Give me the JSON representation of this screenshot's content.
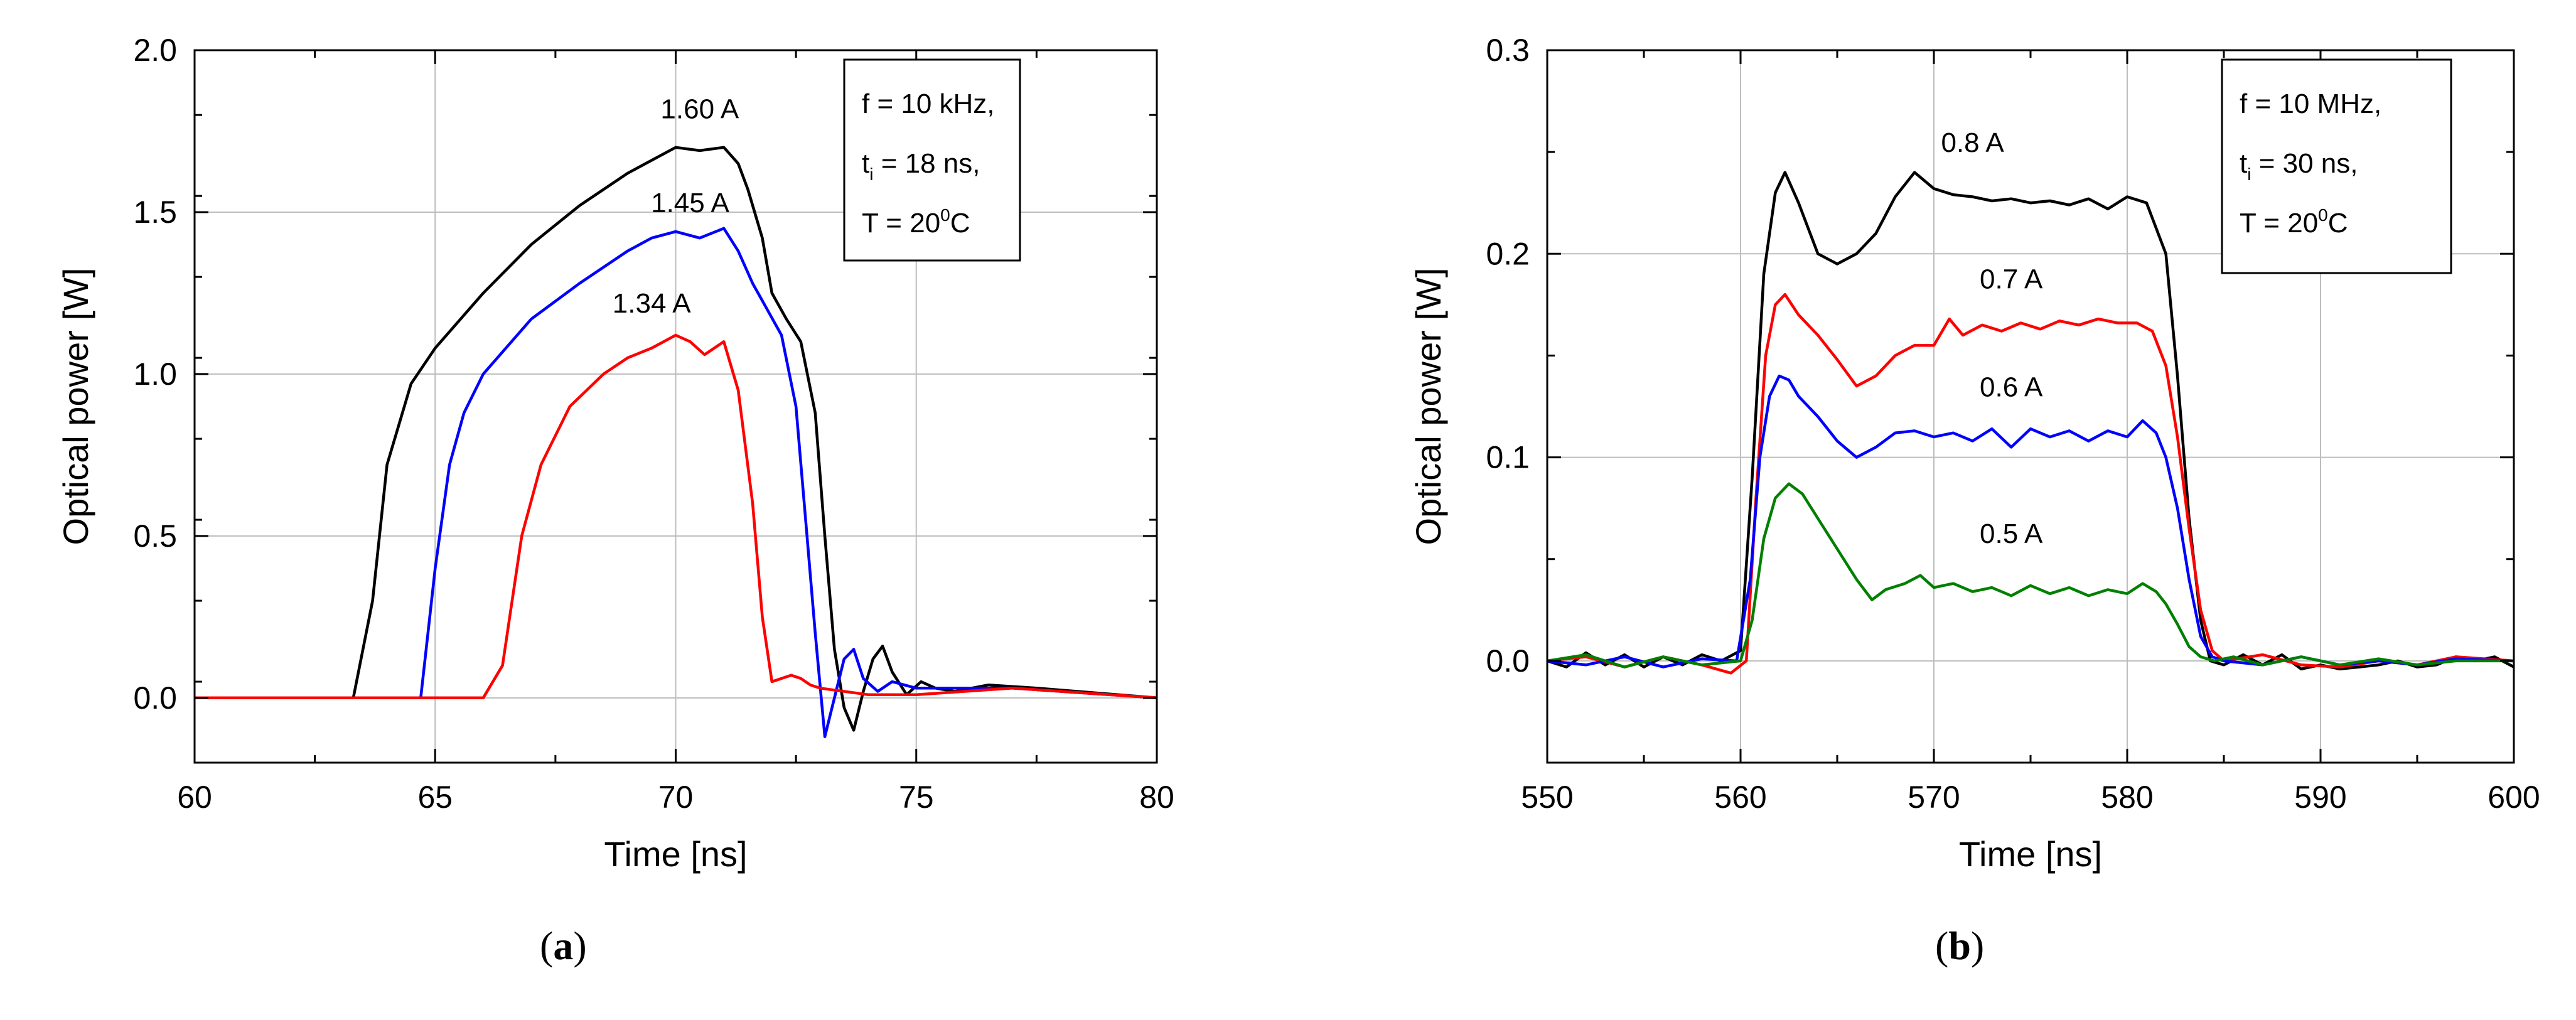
{
  "panels": [
    {
      "label": "a",
      "chart_data": {
        "type": "line",
        "xlabel": "Time [ns]",
        "ylabel": "Optical power [W]",
        "xlim": [
          60,
          80
        ],
        "ylim": [
          -0.2,
          2.0
        ],
        "xticks": [
          60,
          65,
          70,
          75,
          80
        ],
        "yticks": [
          0.0,
          0.5,
          1.0,
          1.5,
          2.0
        ],
        "ytick_labels": [
          "0.0",
          "0.5",
          "1.0",
          "1.5",
          "2.0"
        ],
        "grid": true,
        "legend": {
          "position": "top-right",
          "lines": [
            {
              "main": "f = 10 kHz,"
            },
            {
              "main": "t",
              "sub": "i",
              "rest": " = 18 ns,"
            },
            {
              "main": "T = 20",
              "sup": "0",
              "rest": "C"
            }
          ]
        },
        "series": [
          {
            "name": "1.60 A",
            "color": "#000000",
            "label_x": 70.5,
            "label_y": 1.79,
            "x": [
              60,
              62,
              63.3,
              63.7,
              64.0,
              64.5,
              65,
              66,
              67,
              68,
              69,
              69.5,
              70,
              70.5,
              71,
              71.3,
              71.5,
              71.8,
              72,
              72.3,
              72.6,
              72.9,
              73.1,
              73.3,
              73.5,
              73.7,
              73.9,
              74.1,
              74.3,
              74.5,
              74.8,
              75.1,
              75.4,
              75.8,
              76.5,
              77.5,
              80
            ],
            "y": [
              0,
              0,
              0,
              0.3,
              0.72,
              0.97,
              1.08,
              1.25,
              1.4,
              1.52,
              1.62,
              1.66,
              1.7,
              1.69,
              1.7,
              1.65,
              1.57,
              1.42,
              1.25,
              1.17,
              1.1,
              0.88,
              0.5,
              0.15,
              -0.03,
              -0.1,
              0.02,
              0.12,
              0.16,
              0.08,
              0.01,
              0.05,
              0.03,
              0.02,
              0.04,
              0.03,
              0.0
            ]
          },
          {
            "name": "1.45 A",
            "color": "#0000ff",
            "label_x": 70.3,
            "label_y": 1.5,
            "x": [
              60,
              64,
              64.7,
              65.0,
              65.3,
              65.6,
              66,
              67,
              68,
              69,
              69.5,
              70,
              70.5,
              71,
              71.3,
              71.6,
              71.9,
              72.2,
              72.5,
              72.7,
              72.9,
              73.1,
              73.3,
              73.5,
              73.7,
              73.9,
              74.2,
              74.5,
              75,
              76,
              77,
              80
            ],
            "y": [
              0,
              0,
              0,
              0.4,
              0.72,
              0.88,
              1.0,
              1.17,
              1.28,
              1.38,
              1.42,
              1.44,
              1.42,
              1.45,
              1.38,
              1.28,
              1.2,
              1.12,
              0.9,
              0.55,
              0.2,
              -0.12,
              0.0,
              0.12,
              0.15,
              0.06,
              0.02,
              0.05,
              0.03,
              0.03,
              0.03,
              0.0
            ]
          },
          {
            "name": "1.34 A",
            "color": "#ff0000",
            "label_x": 69.5,
            "label_y": 1.19,
            "x": [
              60,
              66,
              66.4,
              66.8,
              67.2,
              67.8,
              68.5,
              69,
              69.5,
              70,
              70.3,
              70.6,
              71,
              71.3,
              71.6,
              71.8,
              72.0,
              72.2,
              72.4,
              72.6,
              72.8,
              73,
              74,
              75,
              76,
              77,
              80
            ],
            "y": [
              0,
              0,
              0.1,
              0.5,
              0.72,
              0.9,
              1.0,
              1.05,
              1.08,
              1.12,
              1.1,
              1.06,
              1.1,
              0.95,
              0.6,
              0.25,
              0.05,
              0.06,
              0.07,
              0.06,
              0.04,
              0.03,
              0.01,
              0.01,
              0.02,
              0.03,
              0.0
            ]
          }
        ]
      }
    },
    {
      "label": "b",
      "chart_data": {
        "type": "line",
        "xlabel": "Time [ns]",
        "ylabel": "Optical power [W]",
        "xlim": [
          550,
          600
        ],
        "ylim": [
          -0.05,
          0.3
        ],
        "xticks": [
          550,
          560,
          570,
          580,
          590,
          600
        ],
        "yticks": [
          0.0,
          0.1,
          0.2,
          0.3
        ],
        "ytick_labels": [
          "0.0",
          "0.1",
          "0.2",
          "0.3"
        ],
        "grid": true,
        "legend": {
          "position": "top-right",
          "lines": [
            {
              "main": "f = 10 MHz,"
            },
            {
              "main": "t",
              "sub": "i",
              "rest": " = 30 ns,"
            },
            {
              "main": "T = 20",
              "sup": "0",
              "rest": "C"
            }
          ]
        },
        "series": [
          {
            "name": "0.8 A",
            "color": "#000000",
            "label_x": 572,
            "label_y": 0.25,
            "x": [
              550,
              551,
              552,
              553,
              554,
              555,
              556,
              557,
              558,
              559,
              560,
              560.6,
              561.2,
              561.8,
              562.3,
              563,
              564,
              565,
              566,
              567,
              568,
              569,
              570,
              571,
              572,
              573,
              574,
              575,
              576,
              577,
              578,
              579,
              580,
              581,
              582,
              582.6,
              583.2,
              583.8,
              584.3,
              585,
              586,
              587,
              588,
              589,
              590,
              591,
              592,
              593,
              594,
              595,
              596,
              597,
              598,
              599,
              600
            ],
            "y": [
              0.0,
              -0.003,
              0.004,
              -0.002,
              0.003,
              -0.003,
              0.002,
              -0.002,
              0.003,
              0.0,
              0.005,
              0.09,
              0.19,
              0.23,
              0.24,
              0.225,
              0.2,
              0.195,
              0.2,
              0.21,
              0.228,
              0.24,
              0.232,
              0.229,
              0.228,
              0.226,
              0.227,
              0.225,
              0.226,
              0.224,
              0.227,
              0.222,
              0.228,
              0.225,
              0.2,
              0.14,
              0.07,
              0.02,
              0.0,
              -0.002,
              0.003,
              -0.002,
              0.003,
              -0.004,
              -0.002,
              -0.004,
              -0.003,
              -0.002,
              0.0,
              -0.003,
              -0.002,
              0.002,
              0.0,
              0.002,
              -0.003
            ]
          },
          {
            "name": "0.7 A",
            "color": "#ff0000",
            "label_x": 574,
            "label_y": 0.183,
            "x": [
              550,
              552,
              554,
              556,
              558,
              559.5,
              560.3,
              560.8,
              561.3,
              561.8,
              562.3,
              563,
              564,
              565,
              566,
              567,
              568,
              569,
              570,
              570.8,
              571.5,
              572.5,
              573.5,
              574.5,
              575.5,
              576.5,
              577.5,
              578.5,
              579.5,
              580.5,
              581.3,
              582,
              582.6,
              583.2,
              583.8,
              584.4,
              585,
              587,
              589,
              591,
              593,
              595,
              597,
              600
            ],
            "y": [
              0.0,
              0.002,
              -0.003,
              0.002,
              -0.002,
              -0.006,
              0.0,
              0.08,
              0.15,
              0.175,
              0.18,
              0.17,
              0.16,
              0.148,
              0.135,
              0.14,
              0.15,
              0.155,
              0.155,
              0.168,
              0.16,
              0.165,
              0.162,
              0.166,
              0.163,
              0.167,
              0.165,
              0.168,
              0.166,
              0.166,
              0.162,
              0.145,
              0.11,
              0.065,
              0.025,
              0.005,
              0.0,
              0.003,
              -0.002,
              -0.003,
              0.0,
              -0.002,
              0.002,
              0.0
            ]
          },
          {
            "name": "0.6 A",
            "color": "#0000ff",
            "label_x": 574,
            "label_y": 0.13,
            "x": [
              550,
              552,
              554,
              556,
              558,
              559.8,
              560.5,
              561,
              561.5,
              562,
              562.5,
              563,
              564,
              565,
              566,
              567,
              568,
              569,
              570,
              571,
              572,
              573,
              574,
              575,
              576,
              577,
              578,
              579,
              580,
              580.8,
              581.5,
              582,
              582.6,
              583.2,
              583.8,
              584.4,
              585,
              587,
              589,
              591,
              593,
              595,
              597,
              600
            ],
            "y": [
              0.0,
              -0.002,
              0.002,
              -0.003,
              0.001,
              0.0,
              0.04,
              0.1,
              0.13,
              0.14,
              0.138,
              0.13,
              0.12,
              0.108,
              0.1,
              0.105,
              0.112,
              0.113,
              0.11,
              0.112,
              0.108,
              0.114,
              0.105,
              0.114,
              0.11,
              0.113,
              0.108,
              0.113,
              0.11,
              0.118,
              0.112,
              0.1,
              0.075,
              0.04,
              0.012,
              0.002,
              0.0,
              -0.002,
              0.002,
              -0.002,
              0.0,
              -0.002,
              0.001,
              0.0
            ]
          },
          {
            "name": "0.5 A",
            "color": "#008000",
            "label_x": 574,
            "label_y": 0.058,
            "x": [
              550,
              552,
              554,
              556,
              558,
              560,
              560.6,
              561.2,
              561.8,
              562.5,
              563.2,
              564,
              565,
              566,
              566.8,
              567.5,
              568.5,
              569.3,
              570,
              571,
              572,
              573,
              574,
              575,
              576,
              577,
              578,
              579,
              580,
              580.8,
              581.5,
              582,
              582.6,
              583.2,
              583.8,
              584.5,
              585.5,
              587,
              589,
              591,
              593,
              595,
              597,
              600
            ],
            "y": [
              0.0,
              0.003,
              -0.003,
              0.002,
              -0.002,
              0.0,
              0.02,
              0.06,
              0.08,
              0.087,
              0.082,
              0.07,
              0.055,
              0.04,
              0.03,
              0.035,
              0.038,
              0.042,
              0.036,
              0.038,
              0.034,
              0.036,
              0.032,
              0.037,
              0.033,
              0.036,
              0.032,
              0.035,
              0.033,
              0.038,
              0.034,
              0.028,
              0.018,
              0.007,
              0.002,
              0.0,
              0.002,
              -0.002,
              0.002,
              -0.002,
              0.001,
              -0.002,
              0.0,
              0.0
            ]
          }
        ]
      }
    }
  ]
}
